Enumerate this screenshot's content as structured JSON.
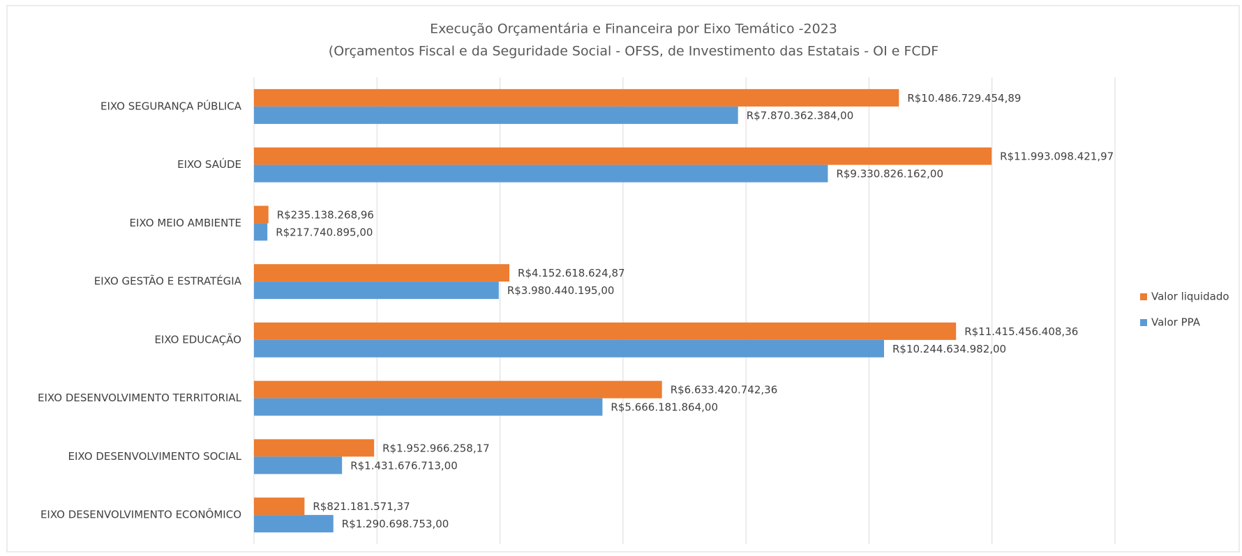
{
  "chart_data": {
    "type": "bar",
    "orientation": "horizontal",
    "title": "Execução Orçamentária e Financeira por Eixo Temático -2023",
    "subtitle": "(Orçamentos Fiscal e da Seguridade Social - OFSS, de Investimento das Estatais - OI e FCDF",
    "categories": [
      "EIXO SEGURANÇA PÚBLICA",
      "EIXO SAÚDE",
      "EIXO MEIO AMBIENTE",
      "EIXO GESTÃO E ESTRATÉGIA",
      "EIXO EDUCAÇÃO",
      "EIXO DESENVOLVIMENTO TERRITORIAL",
      "EIXO DESENVOLVIMENTO SOCIAL",
      "EIXO DESENVOLVIMENTO ECONÔMICO"
    ],
    "series": [
      {
        "name": "Valor liquidado",
        "color": "#ed7d31",
        "values": [
          10486729454.89,
          11993098421.97,
          235138268.96,
          4152618624.87,
          11415456408.36,
          6633420742.36,
          1952966258.17,
          821181571.37
        ],
        "value_labels": [
          "R$10.486.729.454,89",
          "R$11.993.098.421,97",
          "R$235.138.268,96",
          "R$4.152.618.624,87",
          "R$11.415.456.408,36",
          "R$6.633.420.742,36",
          "R$1.952.966.258,17",
          "R$821.181.571,37"
        ]
      },
      {
        "name": "Valor PPA",
        "color": "#5b9bd5",
        "values": [
          7870362384.0,
          9330826162.0,
          217740895.0,
          3980440195.0,
          10244634982.0,
          5666181864.0,
          1431676713.0,
          1290698753.0
        ],
        "value_labels": [
          "R$7.870.362.384,00",
          "R$9.330.826.162,00",
          "R$217.740.895,00",
          "R$3.980.440.195,00",
          "R$10.244.634.982,00",
          "R$5.666.181.864,00",
          "R$1.431.676.713,00",
          "R$1.290.698.753,00"
        ]
      }
    ],
    "xlim": [
      0,
      14000000000
    ],
    "xticks": [
      0,
      2000000000,
      4000000000,
      6000000000,
      8000000000,
      10000000000,
      12000000000,
      14000000000
    ],
    "grid": true,
    "legend": "right"
  }
}
